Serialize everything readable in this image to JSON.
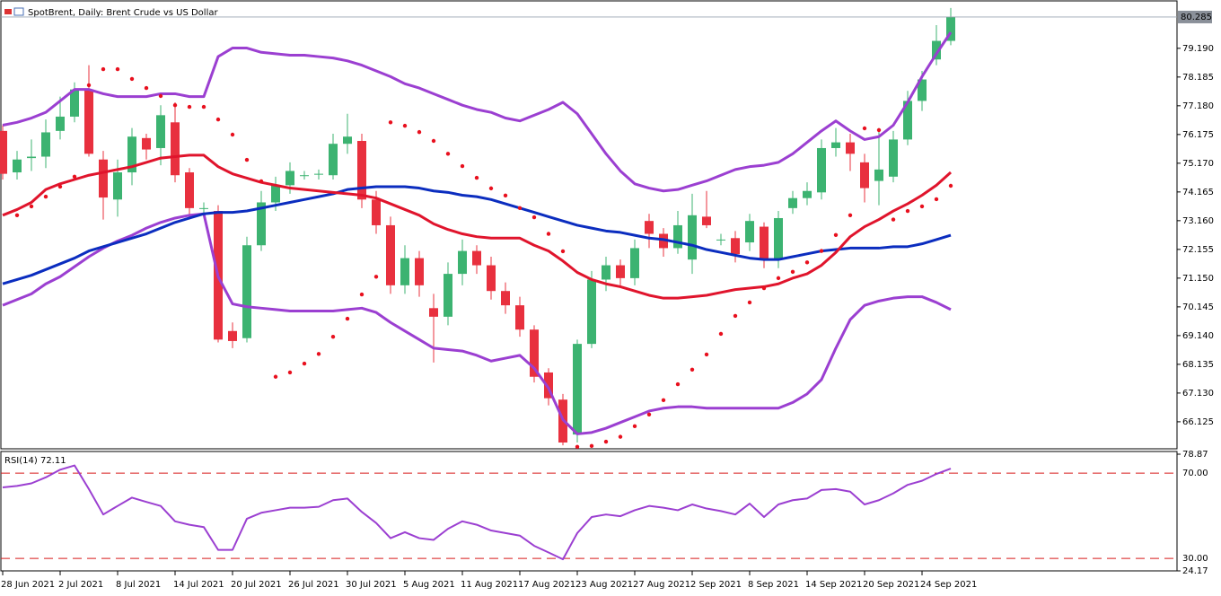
{
  "chart_data": [
    {
      "type": "candlestick",
      "title": "SpotBrent, Daily:  Brent Crude vs US Dollar",
      "categories": [
        "28 Jun 2021",
        null,
        null,
        null,
        "2 Jul 2021",
        null,
        null,
        null,
        "8 Jul 2021",
        null,
        null,
        null,
        "14 Jul 2021",
        null,
        null,
        null,
        "20 Jul 2021",
        null,
        null,
        null,
        "26 Jul 2021",
        null,
        null,
        null,
        "30 Jul 2021",
        null,
        null,
        null,
        "5 Aug 2021",
        null,
        null,
        null,
        "11 Aug 2021",
        null,
        null,
        null,
        "17 Aug 2021",
        null,
        null,
        null,
        "23 Aug 2021",
        null,
        null,
        null,
        "27 Aug 2021",
        null,
        null,
        null,
        "2 Sep 2021",
        null,
        null,
        null,
        "8 Sep 2021",
        null,
        null,
        null,
        "14 Sep 2021",
        null,
        null,
        null,
        "20 Sep 2021",
        null,
        null,
        null,
        "24 Sep 2021",
        null,
        null
      ],
      "open": [
        76.3,
        74.85,
        75.35,
        75.4,
        76.3,
        76.8,
        77.75,
        75.3,
        73.9,
        74.85,
        76.05,
        75.7,
        76.6,
        74.85,
        73.6,
        73.5,
        69.3,
        69.05,
        72.3,
        73.8,
        74.4,
        74.75,
        74.8,
        74.75,
        75.85,
        75.95,
        73.9,
        73.0,
        70.9,
        71.85,
        70.1,
        69.8,
        71.3,
        72.1,
        71.6,
        70.7,
        70.2,
        69.35,
        67.85,
        66.9,
        65.68,
        68.85,
        71.1,
        71.6,
        71.15,
        73.15,
        72.7,
        72.2,
        71.8,
        73.3,
        72.5,
        72.55,
        72.4,
        72.95,
        71.8,
        73.6,
        73.95,
        74.15,
        75.7,
        75.9,
        75.2,
        74.55,
        74.7,
        76.0,
        77.35,
        78.8,
        79.45
      ],
      "high": [
        76.5,
        75.6,
        76.0,
        76.7,
        77.5,
        78.0,
        78.6,
        75.6,
        75.3,
        76.4,
        76.2,
        77.2,
        77.3,
        75.0,
        73.8,
        73.7,
        69.6,
        72.6,
        74.2,
        74.7,
        75.2,
        74.9,
        74.95,
        76.2,
        76.9,
        76.2,
        74.2,
        73.3,
        72.3,
        72.1,
        70.6,
        71.7,
        72.5,
        72.3,
        71.9,
        71.0,
        70.5,
        69.5,
        68.0,
        67.1,
        69.0,
        71.4,
        71.9,
        71.8,
        72.5,
        73.4,
        72.9,
        73.5,
        74.1,
        74.2,
        72.7,
        72.8,
        73.4,
        73.1,
        73.5,
        74.2,
        74.5,
        76.0,
        76.4,
        76.2,
        75.5,
        76.4,
        76.3,
        77.7,
        78.4,
        80.0,
        80.6
      ],
      "low": [
        74.6,
        74.6,
        74.9,
        75.0,
        76.0,
        76.6,
        75.4,
        73.2,
        73.3,
        74.4,
        75.3,
        75.1,
        74.5,
        73.2,
        73.4,
        68.9,
        68.7,
        68.9,
        72.1,
        73.5,
        74.1,
        74.6,
        74.6,
        74.6,
        75.5,
        73.6,
        72.7,
        70.6,
        70.6,
        70.5,
        68.2,
        69.5,
        70.9,
        71.3,
        70.4,
        69.9,
        69.1,
        67.5,
        66.7,
        65.3,
        65.4,
        68.7,
        70.7,
        70.9,
        70.9,
        72.2,
        71.9,
        72.0,
        71.3,
        72.9,
        72.3,
        71.7,
        72.1,
        71.5,
        71.5,
        73.4,
        73.7,
        73.9,
        75.4,
        74.9,
        73.8,
        73.7,
        74.5,
        75.8,
        77.0,
        78.6,
        79.3
      ],
      "close": [
        74.8,
        75.3,
        75.4,
        76.25,
        76.8,
        77.75,
        75.5,
        73.97,
        74.85,
        76.1,
        75.65,
        76.85,
        74.75,
        73.6,
        73.6,
        69.0,
        68.95,
        72.3,
        73.8,
        74.4,
        74.9,
        74.75,
        74.8,
        75.85,
        76.1,
        73.9,
        73.0,
        70.9,
        71.85,
        70.9,
        69.8,
        71.3,
        72.1,
        71.6,
        70.7,
        70.2,
        69.35,
        67.7,
        66.95,
        65.4,
        68.85,
        71.1,
        71.6,
        71.15,
        72.2,
        72.7,
        72.2,
        73.0,
        73.35,
        73.0,
        72.5,
        71.99,
        73.15,
        71.8,
        73.25,
        73.95,
        74.2,
        75.7,
        75.9,
        75.5,
        74.3,
        74.95,
        76.0,
        77.35,
        78.1,
        79.45,
        80.285
      ],
      "up_color": "#3cb371",
      "down_color": "#e8303e",
      "overlays": [
        {
          "color": "#9b3fd1",
          "values": [
            76.5,
            76.6,
            76.75,
            76.95,
            77.35,
            77.75,
            77.75,
            77.6,
            77.5,
            77.5,
            77.5,
            77.6,
            77.6,
            77.5,
            77.5,
            78.9,
            79.2,
            79.2,
            79.05,
            79.0,
            78.95,
            78.95,
            78.9,
            78.85,
            78.75,
            78.6,
            78.4,
            78.2,
            77.95,
            77.8,
            77.6,
            77.4,
            77.2,
            77.05,
            76.95,
            76.75,
            76.65,
            76.85,
            77.05,
            77.3,
            76.9,
            76.2,
            75.5,
            74.9,
            74.45,
            74.3,
            74.2,
            74.25,
            74.4,
            74.55,
            74.75,
            74.95,
            75.05,
            75.1,
            75.2,
            75.5,
            75.9,
            76.3,
            76.65,
            76.3,
            76.0,
            76.1,
            76.5,
            77.3,
            78.2,
            79.0,
            79.75
          ]
        },
        {
          "color": "#9b3fd1",
          "values": [
            70.2,
            70.4,
            70.6,
            70.95,
            71.2,
            71.55,
            71.9,
            72.2,
            72.45,
            72.65,
            72.9,
            73.1,
            73.25,
            73.35,
            73.4,
            71.2,
            70.25,
            70.15,
            70.1,
            70.05,
            70.0,
            70.0,
            70.0,
            70.0,
            70.05,
            70.1,
            69.95,
            69.6,
            69.3,
            69.0,
            68.7,
            68.65,
            68.6,
            68.45,
            68.25,
            68.35,
            68.45,
            68.0,
            67.3,
            66.2,
            65.7,
            65.75,
            65.9,
            66.1,
            66.3,
            66.5,
            66.6,
            66.65,
            66.65,
            66.6,
            66.6,
            66.6,
            66.6,
            66.6,
            66.6,
            66.8,
            67.1,
            67.6,
            68.7,
            69.7,
            70.2,
            70.35,
            70.45,
            70.5,
            70.5,
            70.3,
            70.05
          ]
        },
        {
          "color": "#0b2dbf",
          "values": [
            70.95,
            71.1,
            71.25,
            71.45,
            71.65,
            71.85,
            72.1,
            72.25,
            72.4,
            72.55,
            72.7,
            72.9,
            73.1,
            73.25,
            73.4,
            73.45,
            73.45,
            73.5,
            73.6,
            73.7,
            73.8,
            73.9,
            74.0,
            74.1,
            74.25,
            74.3,
            74.35,
            74.35,
            74.35,
            74.3,
            74.2,
            74.15,
            74.05,
            74.0,
            73.9,
            73.75,
            73.6,
            73.45,
            73.3,
            73.15,
            73.0,
            72.9,
            72.8,
            72.75,
            72.65,
            72.55,
            72.5,
            72.4,
            72.3,
            72.15,
            72.05,
            71.95,
            71.85,
            71.8,
            71.8,
            71.9,
            72.0,
            72.1,
            72.15,
            72.2,
            72.2,
            72.2,
            72.25,
            72.25,
            72.35,
            72.5,
            72.65
          ]
        },
        {
          "color": "#e0142c",
          "values": [
            73.35,
            73.55,
            73.8,
            74.25,
            74.45,
            74.6,
            74.75,
            74.85,
            74.95,
            75.05,
            75.2,
            75.35,
            75.4,
            75.45,
            75.45,
            75.05,
            74.8,
            74.65,
            74.5,
            74.4,
            74.3,
            74.25,
            74.2,
            74.15,
            74.1,
            74.05,
            73.95,
            73.75,
            73.55,
            73.35,
            73.05,
            72.85,
            72.7,
            72.6,
            72.55,
            72.55,
            72.55,
            72.3,
            72.1,
            71.75,
            71.35,
            71.1,
            70.95,
            70.85,
            70.7,
            70.55,
            70.45,
            70.45,
            70.5,
            70.55,
            70.65,
            70.75,
            70.8,
            70.85,
            70.95,
            71.15,
            71.3,
            71.6,
            72.05,
            72.6,
            72.95,
            73.2,
            73.5,
            73.75,
            74.05,
            74.4,
            74.85
          ]
        }
      ],
      "sar": {
        "color": "#e8101e",
        "values": [
          null,
          73.35,
          73.66,
          74.0,
          74.35,
          74.7,
          77.9,
          78.46,
          78.46,
          78.12,
          77.8,
          77.52,
          77.2,
          77.14,
          77.14,
          76.7,
          76.17,
          75.29,
          74.54,
          67.7,
          67.85,
          68.16,
          68.5,
          69.1,
          69.73,
          70.58,
          71.2,
          76.6,
          76.48,
          76.26,
          75.95,
          75.5,
          75.07,
          74.66,
          74.29,
          74.04,
          73.6,
          73.28,
          72.7,
          72.09,
          65.25,
          65.28,
          65.43,
          65.6,
          65.97,
          66.38,
          66.88,
          67.44,
          67.95,
          68.48,
          69.2,
          69.83,
          70.3,
          70.8,
          71.15,
          71.37,
          71.7,
          72.1,
          72.66,
          73.35,
          76.39,
          76.33,
          73.2,
          73.5,
          73.66,
          73.91,
          74.38
        ]
      },
      "ylim": [
        65.18,
        80.88
      ],
      "yticks": [
        {
          "value": 79.19,
          "label": "79.190"
        },
        78.185,
        {
          "value": 77.18,
          "label": "77.180"
        },
        76.175,
        {
          "value": 75.17,
          "label": "75.170"
        },
        74.165,
        {
          "value": 73.16,
          "label": "73.160"
        },
        72.155,
        {
          "value": 71.15,
          "label": "71.150"
        },
        70.145,
        {
          "value": 69.14,
          "label": "69.140"
        },
        68.135,
        {
          "value": 67.13,
          "label": "67.130"
        },
        66.125
      ]
    },
    {
      "type": "line",
      "title": "RSI(14) 72.11",
      "color": "#9b3fd1",
      "values": [
        63.3,
        64.0,
        65.2,
        68.0,
        71.6,
        73.6,
        62.5,
        50.6,
        54.6,
        58.5,
        56.5,
        54.6,
        47.4,
        45.8,
        44.7,
        34.0,
        34.0,
        48.6,
        51.4,
        52.6,
        53.8,
        53.8,
        54.2,
        57.3,
        58.1,
        51.8,
        46.6,
        39.5,
        42.3,
        39.5,
        38.7,
        43.9,
        47.4,
        45.8,
        43.1,
        41.9,
        40.7,
        35.9,
        32.8,
        29.6,
        41.9,
        49.4,
        50.6,
        49.8,
        52.6,
        54.6,
        53.8,
        52.6,
        55.3,
        53.4,
        52.2,
        50.6,
        55.7,
        49.4,
        55.3,
        57.3,
        58.1,
        62.1,
        62.5,
        61.3,
        55.3,
        57.3,
        60.5,
        64.5,
        66.4,
        69.6,
        72.11
      ],
      "ylim": [
        24.17,
        78.87
      ],
      "yticks": [
        78.87,
        24.17
      ],
      "levels": [
        {
          "value": 70,
          "label": "70.00"
        },
        {
          "value": 30,
          "label": "30.00"
        }
      ],
      "level_color": "#d81b1b"
    }
  ]
}
